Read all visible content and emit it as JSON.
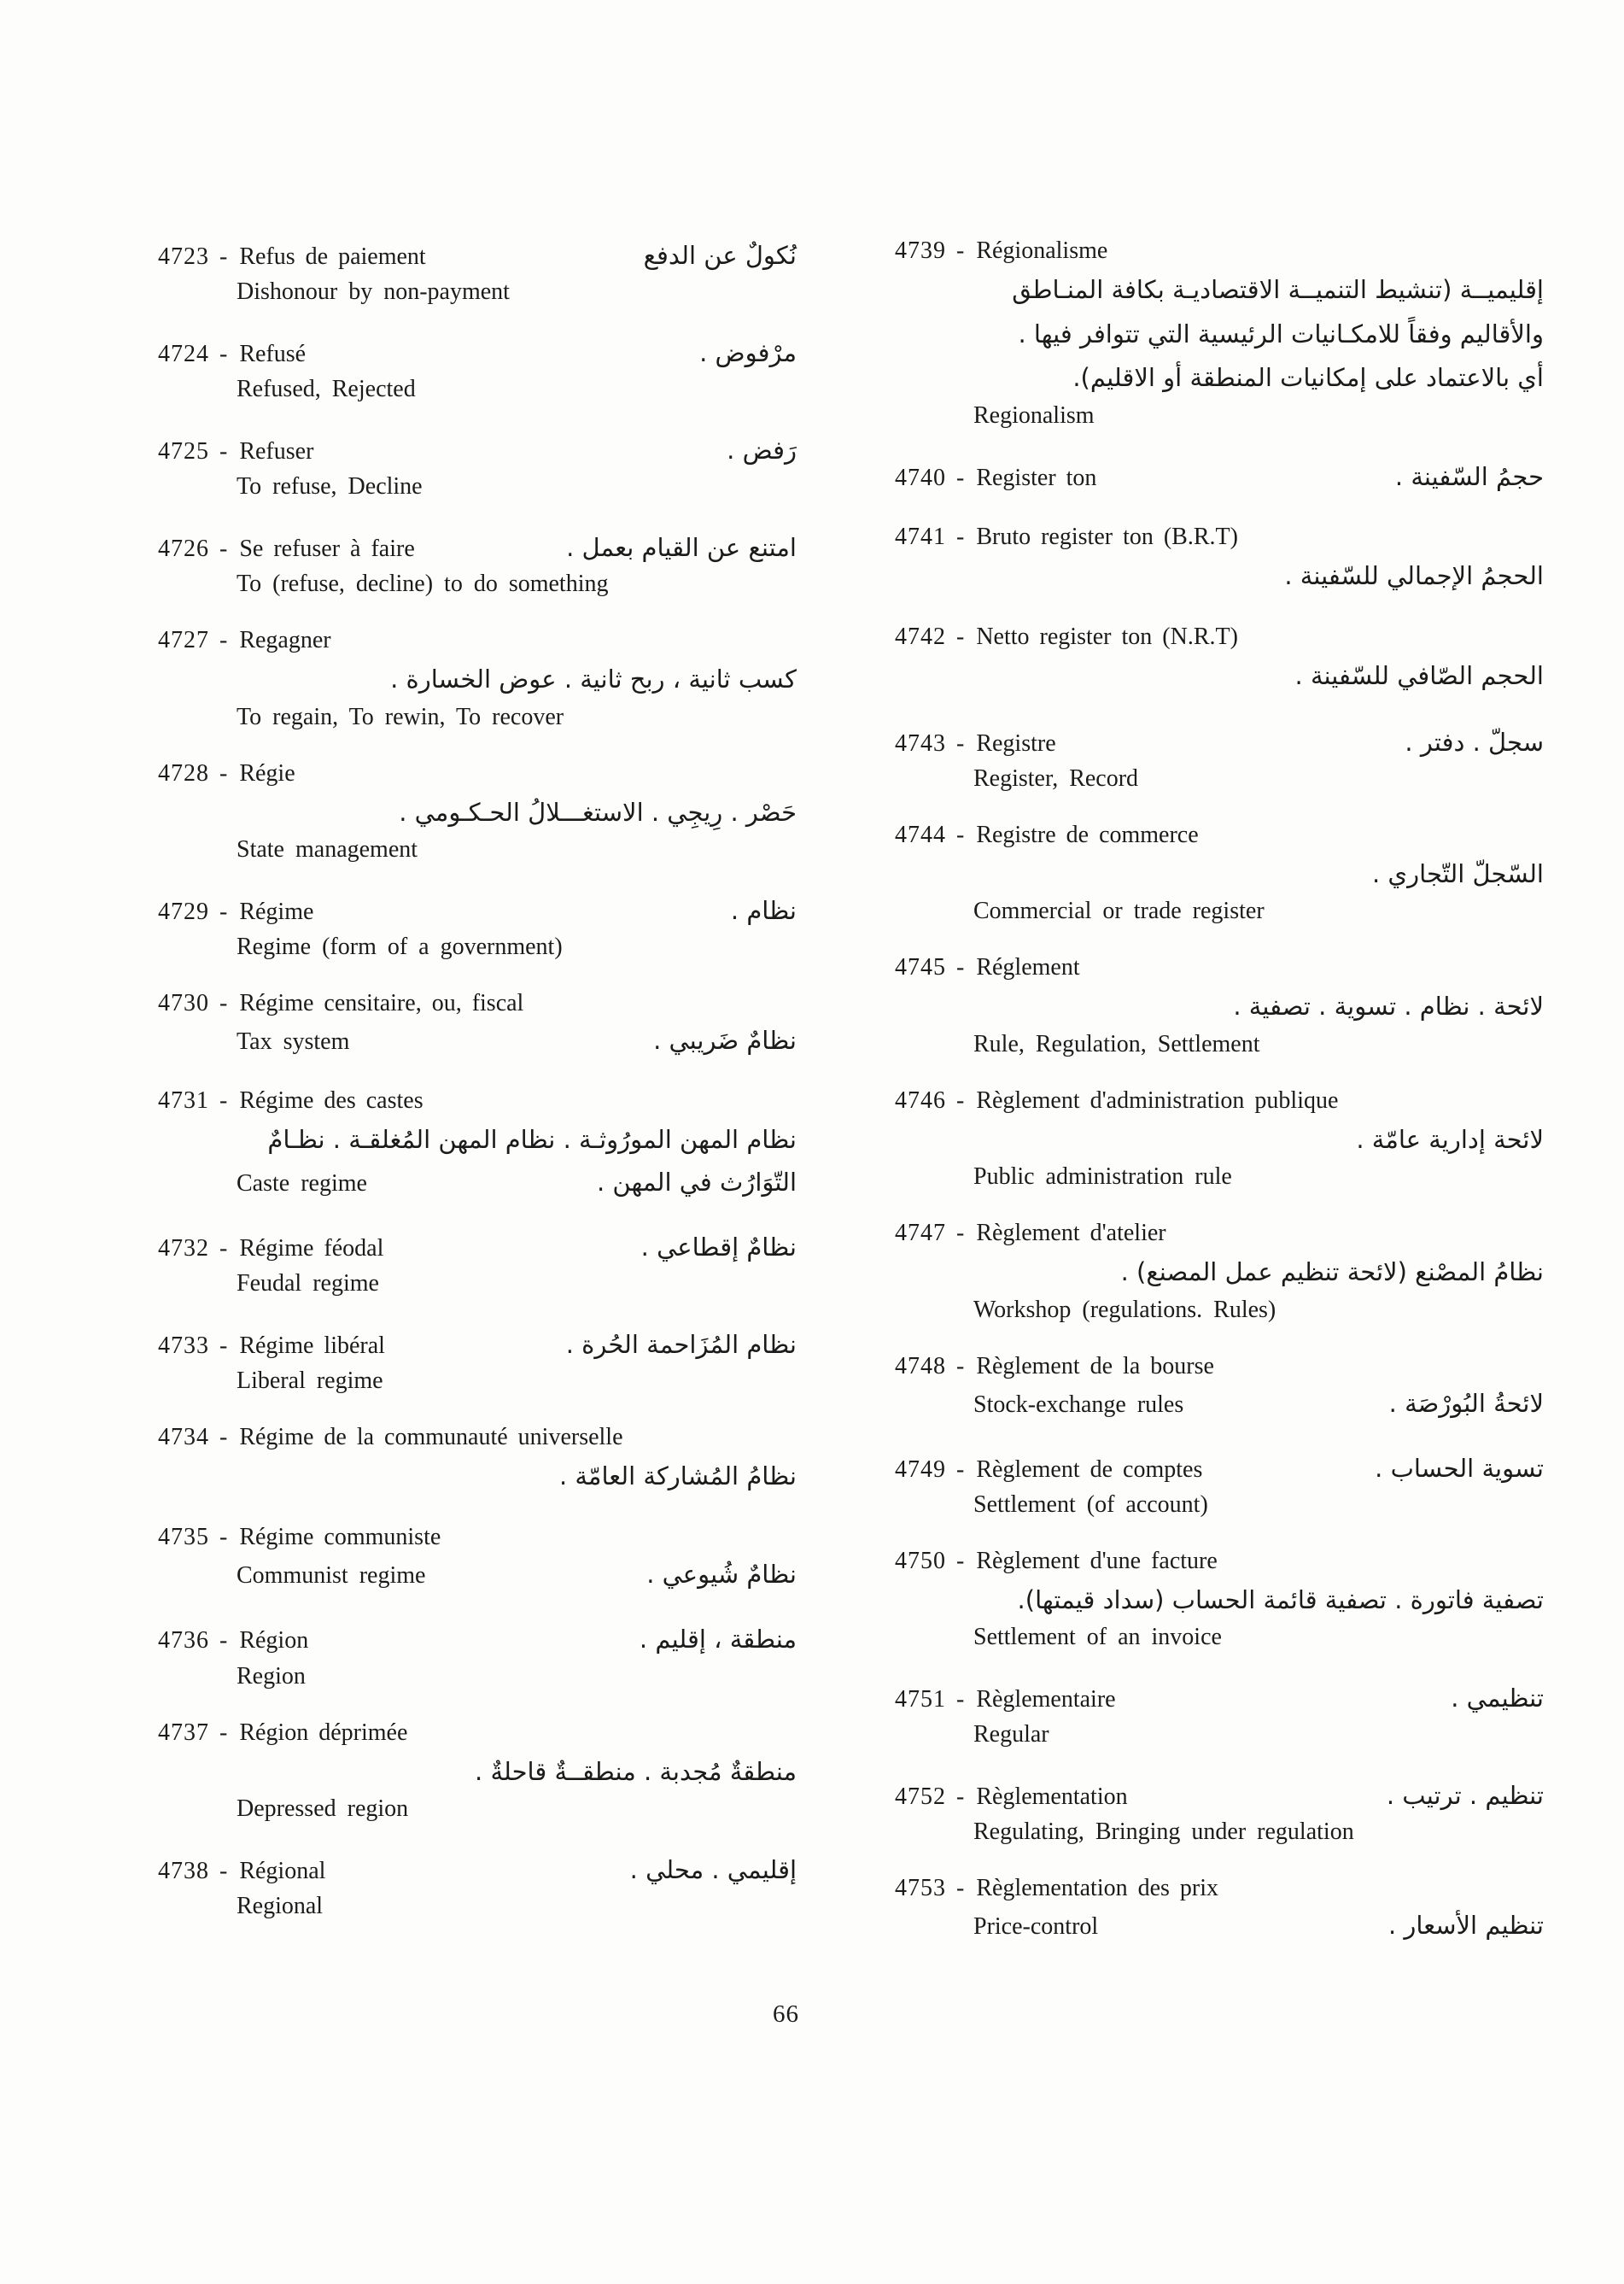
{
  "separator": "-",
  "page_number": "66",
  "columns": {
    "left": {
      "entries": [
        {
          "number": "4723",
          "french": "Refus de paiement",
          "arabic_inline": "نُكولٌ عن الدفع",
          "english": "Dishonour by non-payment"
        },
        {
          "number": "4724",
          "french": "Refusé",
          "arabic_inline": "مرْفوض .",
          "english": "Refused, Rejected"
        },
        {
          "number": "4725",
          "french": "Refuser",
          "arabic_inline": "رَفض .",
          "english": "To refuse, Decline"
        },
        {
          "number": "4726",
          "french": "Se refuser à faire",
          "arabic_inline": "امتنع عن القيام بعمل .",
          "english": "To (refuse, decline) to do something"
        },
        {
          "number": "4727",
          "french": "Regagner",
          "arabic_lines": [
            "كسب ثانية ، ربح ثانية . عوض الخسارة ."
          ],
          "english": "To regain, To rewin, To recover"
        },
        {
          "number": "4728",
          "french": "Régie",
          "arabic_lines": [
            "حَصْر . رِيجِي . الاستغـــلالُ الحـكـومي ."
          ],
          "english": "State management"
        },
        {
          "number": "4729",
          "french": "Régime",
          "arabic_inline": "نظام .",
          "english": "Regime (form of a government)"
        },
        {
          "number": "4730",
          "french": "Régime censitaire, ou, fiscal",
          "english": "Tax system",
          "arabic_with_english": "نظامٌ ضَريبي ."
        },
        {
          "number": "4731",
          "french": "Régime des castes",
          "arabic_lines": [
            "نظام المهن المورُوثـة . نظام المهن المُغلقـة . نظـامٌ"
          ],
          "english": "Caste regime",
          "arabic_with_english": "التّوَارُث في المهن ."
        },
        {
          "number": "4732",
          "french": "Régime féodal",
          "arabic_inline": "نظامٌ إقطاعي .",
          "english": "Feudal regime"
        },
        {
          "number": "4733",
          "french": "Régime libéral",
          "arabic_inline": "نظام المُزَاحمة الحُرة .",
          "english": "Liberal regime"
        },
        {
          "number": "4734",
          "french": "Régime de la communauté universelle",
          "arabic_lines": [
            "نظامُ المُشاركة العامّة ."
          ]
        },
        {
          "number": "4735",
          "french": "Régime communiste",
          "english": "Communist regime",
          "arabic_with_english": "نظامٌ شُيوعي ."
        },
        {
          "number": "4736",
          "french": "Région",
          "arabic_inline": "منطقة ، إقليم .",
          "english": "Region"
        },
        {
          "number": "4737",
          "french": "Région déprimée",
          "arabic_lines": [
            "منطقةٌ مُجدبة . منطقــةٌ قاحلةٌ ."
          ],
          "english": "Depressed region"
        },
        {
          "number": "4738",
          "french": "Régional",
          "arabic_inline": "إقليمي . محلي .",
          "english": "Regional"
        }
      ]
    },
    "right": {
      "entries": [
        {
          "number": "4739",
          "french": "Régionalisme",
          "arabic_lines": [
            "إقليميــة (تنشيط التنميــة الاقتصاديـة بكافة المنـاطق",
            "والأقاليم وفقاً للامكـانيات الرئيسية التي تتوافر فيها .",
            "أي بالاعتماد على إمكانيات المنطقة أو الاقليم)."
          ],
          "english": "Regionalism"
        },
        {
          "number": "4740",
          "french": "Register ton",
          "arabic_inline": "حجمُ السّفينة ."
        },
        {
          "number": "4741",
          "french": "Bruto register ton (B.R.T)",
          "arabic_lines": [
            "الحجمُ الإجمالي للسّفينة ."
          ]
        },
        {
          "number": "4742",
          "french": "Netto register ton (N.R.T)",
          "arabic_lines": [
            "الحجم الصّافي للسّفينة ."
          ]
        },
        {
          "number": "4743",
          "french": "Registre",
          "arabic_inline": "سجلّ . دفتر .",
          "english": "Register, Record"
        },
        {
          "number": "4744",
          "french": "Registre de commerce",
          "arabic_lines": [
            "السّجلّ التّجاري ."
          ],
          "english": "Commercial or trade register"
        },
        {
          "number": "4745",
          "french": "Réglement",
          "arabic_lines": [
            "لائحة . نظام . تسوية . تصفية ."
          ],
          "english": "Rule, Regulation, Settlement"
        },
        {
          "number": "4746",
          "french": "Règlement d'administration publique",
          "arabic_lines": [
            "لائحة إدارية عامّة ."
          ],
          "english": "Public administration rule"
        },
        {
          "number": "4747",
          "french": "Règlement d'atelier",
          "arabic_lines": [
            "نظامُ المصْنع (لائحة تنظيم عمل المصنع) ."
          ],
          "english": "Workshop (regulations. Rules)"
        },
        {
          "number": "4748",
          "french": "Règlement de la bourse",
          "english": "Stock-exchange rules",
          "arabic_with_english": "لائحةُ البُورْصَة ."
        },
        {
          "number": "4749",
          "french": "Règlement de comptes",
          "arabic_inline": "تسوية الحساب .",
          "english": "Settlement (of account)"
        },
        {
          "number": "4750",
          "french": "Règlement d'une facture",
          "arabic_lines": [
            "تصفية فاتورة . تصفية قائمة الحساب (سداد قيمتها)."
          ],
          "english": "Settlement of an invoice"
        },
        {
          "number": "4751",
          "french": "Règlementaire",
          "arabic_inline": "تنظيمي .",
          "english": "Regular"
        },
        {
          "number": "4752",
          "french": "Règlementation",
          "arabic_inline": "تنظيم . ترتيب .",
          "english": "Regulating, Bringing under regulation"
        },
        {
          "number": "4753",
          "french": "Règlementation des prix",
          "english": "Price-control",
          "arabic_with_english": "تنظيم الأسعار ."
        }
      ]
    }
  }
}
